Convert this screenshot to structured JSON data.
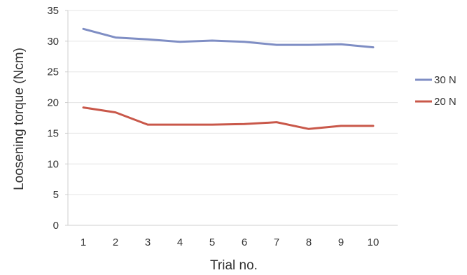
{
  "chart_data": {
    "type": "line",
    "title": "",
    "xlabel": "Trial no.",
    "ylabel": "Loosening torque (Ncm)",
    "categories": [
      "1",
      "2",
      "3",
      "4",
      "5",
      "6",
      "7",
      "8",
      "9",
      "10"
    ],
    "yticks": [
      "0",
      "5",
      "10",
      "15",
      "20",
      "25",
      "30",
      "35"
    ],
    "ylim": [
      0,
      35
    ],
    "grid": true,
    "legend_position": "right",
    "series": [
      {
        "name": "30 N",
        "color": "#7f8ec4",
        "values": [
          32.0,
          30.6,
          30.3,
          29.9,
          30.1,
          29.9,
          29.4,
          29.4,
          29.5,
          29.0
        ]
      },
      {
        "name": "20 N",
        "color": "#c9584a",
        "values": [
          19.2,
          18.4,
          16.4,
          16.4,
          16.4,
          16.5,
          16.8,
          15.7,
          16.2,
          16.2
        ]
      }
    ]
  }
}
